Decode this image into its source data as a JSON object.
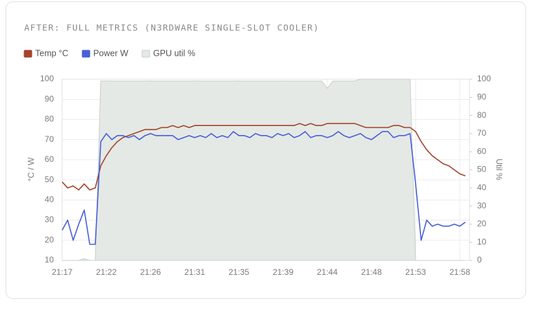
{
  "chart_data": {
    "type": "line",
    "title": "AFTER: FULL METRICS (N3RDWARE SINGLE-SLOT COOLER)",
    "ylabel": "°C / W",
    "y2label": "Util %",
    "categories": [
      "21:17",
      null,
      null,
      null,
      null,
      null,
      null,
      null,
      "21:22",
      null,
      null,
      null,
      null,
      null,
      null,
      null,
      "21:26",
      null,
      null,
      null,
      null,
      null,
      null,
      null,
      "21:31",
      null,
      null,
      null,
      null,
      null,
      null,
      null,
      "21:35",
      null,
      null,
      null,
      null,
      null,
      null,
      null,
      "21:39",
      null,
      null,
      null,
      null,
      null,
      null,
      null,
      "21:44",
      null,
      null,
      null,
      null,
      null,
      null,
      null,
      "21:48",
      null,
      null,
      null,
      null,
      null,
      null,
      null,
      "21:53",
      null,
      null,
      null,
      null,
      null,
      null,
      null,
      "21:58",
      null
    ],
    "ylim": [
      10,
      100
    ],
    "yticks": [
      10,
      20,
      30,
      40,
      50,
      60,
      70,
      80,
      90,
      100
    ],
    "y2lim": [
      0,
      100
    ],
    "y2ticks": [
      0,
      10,
      20,
      30,
      40,
      50,
      60,
      70,
      80,
      90,
      100
    ],
    "grid": true,
    "legend": "top-left",
    "series": [
      {
        "name": "Temp °C",
        "color": "#a3452b",
        "values": [
          49,
          46,
          47,
          45,
          48,
          45,
          46,
          57,
          62,
          66,
          69,
          71,
          72,
          73,
          74,
          75,
          75,
          75,
          76,
          76,
          77,
          76,
          77,
          76,
          77,
          77,
          77,
          77,
          77,
          77,
          77,
          77,
          77,
          77,
          77,
          77,
          77,
          77,
          77,
          77,
          77,
          77,
          77,
          78,
          77,
          78,
          77,
          77,
          78,
          78,
          78,
          78,
          78,
          78,
          77,
          76,
          76,
          76,
          76,
          76,
          77,
          77,
          76,
          76,
          74,
          69,
          65,
          62,
          60,
          58,
          57,
          55,
          53,
          52
        ]
      },
      {
        "name": "Power W",
        "color": "#4a5fd6",
        "values": [
          25,
          30,
          20,
          28,
          35,
          18,
          18,
          69,
          73,
          70,
          72,
          72,
          71,
          72,
          70,
          72,
          73,
          72,
          72,
          72,
          72,
          70,
          71,
          72,
          71,
          72,
          71,
          73,
          71,
          72,
          71,
          74,
          72,
          72,
          71,
          73,
          72,
          72,
          71,
          73,
          72,
          73,
          71,
          72,
          74,
          71,
          72,
          72,
          71,
          72,
          74,
          72,
          71,
          72,
          73,
          71,
          70,
          72,
          74,
          74,
          71,
          72,
          72,
          73,
          48,
          20,
          30,
          27,
          28,
          27,
          27,
          28,
          27,
          29
        ]
      },
      {
        "name": "GPU util %",
        "color": "#c6d0cb",
        "fill": "#e4e9e6",
        "type": "area",
        "axis": "y2",
        "values": [
          0,
          0,
          0,
          0,
          1,
          0,
          0,
          99,
          99,
          99,
          99,
          99,
          99,
          99,
          99,
          99,
          99,
          99,
          99,
          99,
          99,
          99,
          99,
          99,
          99,
          99,
          99,
          99,
          99,
          99,
          99,
          99,
          99,
          99,
          99,
          99,
          99,
          99,
          99,
          99,
          99,
          99,
          99,
          99,
          99,
          99,
          99,
          99,
          95,
          99,
          99,
          99,
          99,
          99,
          100,
          100,
          100,
          100,
          100,
          100,
          100,
          100,
          100,
          100,
          0,
          0,
          0,
          0,
          0,
          0,
          0,
          0,
          0,
          0
        ]
      }
    ]
  }
}
